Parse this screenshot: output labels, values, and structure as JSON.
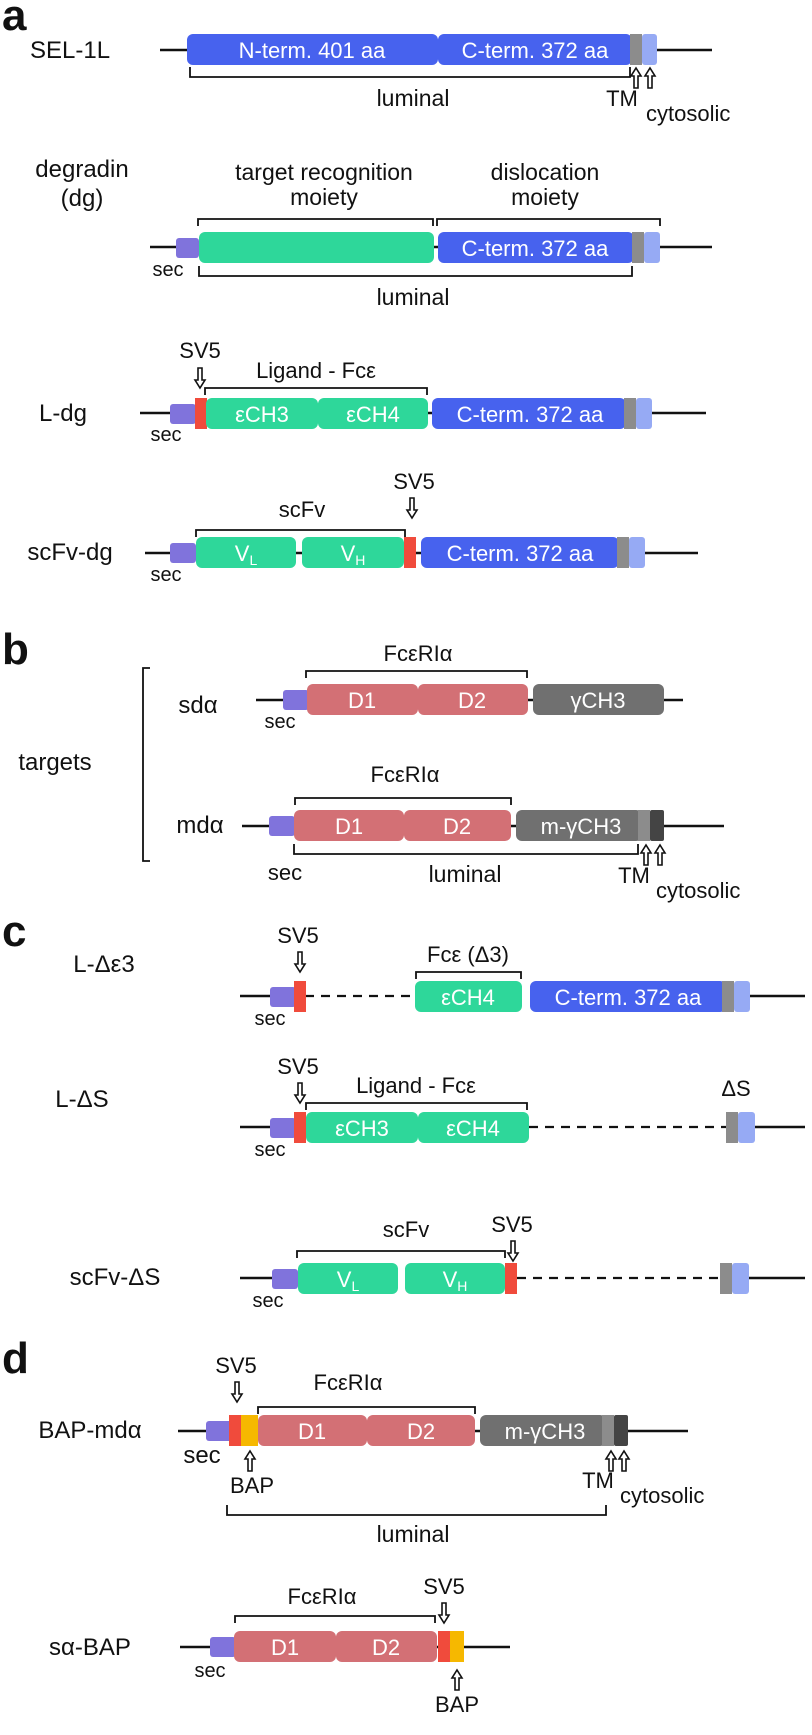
{
  "colors": {
    "blue": "#4762ee",
    "light_blue": "#96aaf4",
    "grey": "#8c8c8c",
    "green": "#2ed79a",
    "red": "#f04b3c",
    "purple": "#8073dc",
    "pink": "#d37075",
    "dark_grey": "#707070",
    "darker_grey": "#444444",
    "yellow": "#f6b800"
  },
  "panel_a": {
    "letter": "a",
    "sel1l": {
      "name": "SEL-1L",
      "nterm": "N-term. 401 aa",
      "cterm": "C-term. 372 aa",
      "luminal": "luminal",
      "tm": "TM",
      "cytosolic": "cytosolic"
    },
    "degradin": {
      "name_line1": "degradin",
      "name_line2": "(dg)",
      "target_line1": "target recognition",
      "target_line2": "moiety",
      "disloc_line1": "dislocation",
      "disloc_line2": "moiety",
      "cterm": "C-term. 372 aa",
      "sec": "sec",
      "luminal": "luminal"
    },
    "ldg": {
      "name": "L-dg",
      "sv5": "SV5",
      "ligand": "Ligand - Fcε",
      "ech3": "εCH3",
      "ech4": "εCH4",
      "cterm": "C-term. 372 aa",
      "sec": "sec"
    },
    "scfvdg": {
      "name": "scFv-dg",
      "scfv": "scFv",
      "sv5": "SV5",
      "v": "V",
      "sub_l": "L",
      "sub_h": "H",
      "cterm": "C-term. 372 aa",
      "sec": "sec"
    }
  },
  "panel_b": {
    "letter": "b",
    "targets": "targets",
    "sda": {
      "name": "sdα",
      "fc": "FcεRIα",
      "d1": "D1",
      "d2": "D2",
      "gch3": "γCH3",
      "sec": "sec"
    },
    "mda": {
      "name": "mdα",
      "fc": "FcεRIα",
      "d1": "D1",
      "d2": "D2",
      "mgch3": "m-γCH3",
      "sec": "sec",
      "luminal": "luminal",
      "tm": "TM",
      "cytosolic": "cytosolic"
    }
  },
  "panel_c": {
    "letter": "c",
    "lde3": {
      "name": "L-Δε3",
      "sv5": "SV5",
      "fc": "Fcε (Δ3)",
      "ech4": "εCH4",
      "cterm": "C-term. 372 aa",
      "sec": "sec"
    },
    "lds": {
      "name": "L-ΔS",
      "sv5": "SV5",
      "ligand": "Ligand - Fcε",
      "ech3": "εCH3",
      "ech4": "εCH4",
      "ds": "ΔS",
      "sec": "sec"
    },
    "scfvds": {
      "name": "scFv-ΔS",
      "scfv": "scFv",
      "sv5": "SV5",
      "v": "V",
      "sub_l": "L",
      "sub_h": "H",
      "ds": "ΔS",
      "sec": "sec"
    }
  },
  "panel_d": {
    "letter": "d",
    "bapmda": {
      "name": "BAP-mdα",
      "sv5": "SV5",
      "fc": "FcεRIα",
      "d1": "D1",
      "d2": "D2",
      "mgch3": "m-γCH3",
      "sec": "sec",
      "bap": "BAP",
      "tm": "TM",
      "cytosolic": "cytosolic",
      "luminal": "luminal"
    },
    "sabap": {
      "name": "sα-BAP",
      "fc": "FcεRIα",
      "sv5": "SV5",
      "d1": "D1",
      "d2": "D2",
      "sec": "sec",
      "bap": "BAP"
    }
  }
}
